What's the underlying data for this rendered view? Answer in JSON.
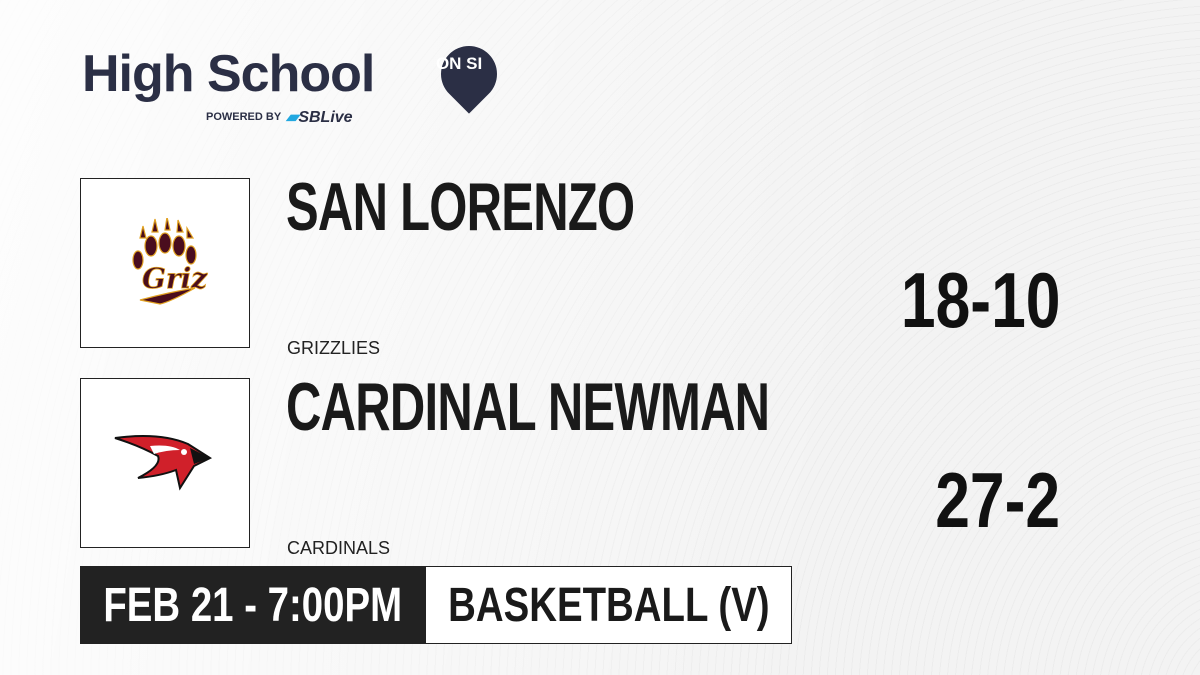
{
  "brand": {
    "title": "High School",
    "badge": "ON SI",
    "powered_by": "POWERED BY",
    "partner": "SBLive"
  },
  "teams": [
    {
      "name": "SAN LORENZO",
      "mascot": "GRIZZLIES",
      "record": "18-10",
      "logo": "griz-paw-logo",
      "color": "#4a0d1e"
    },
    {
      "name": "CARDINAL NEWMAN",
      "mascot": "CARDINALS",
      "record": "27-2",
      "logo": "cardinal-bird-logo",
      "color": "#d0202a"
    }
  ],
  "game": {
    "datetime": "FEB 21 - 7:00PM",
    "sport": "BASKETBALL (V)"
  }
}
